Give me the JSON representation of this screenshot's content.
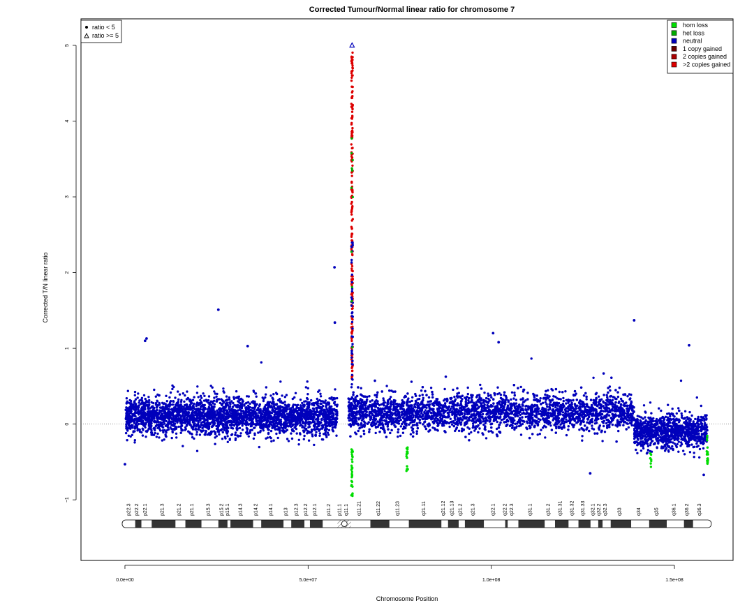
{
  "chart_data": {
    "type": "scatter",
    "title": "Corrected Tumour/Normal linear ratio for chromosome  7",
    "xlabel": "Chromosome Position",
    "ylabel": "Corrected T/N linear ratio",
    "xlim": [
      -12000000,
      166000000
    ],
    "ylim": [
      -1.8,
      5.35
    ],
    "x_ticks": [
      0,
      50000000,
      100000000,
      150000000
    ],
    "x_tick_labels": [
      "0.0e+00",
      "5.0e+07",
      "1.0e+08",
      "1.5e+08"
    ],
    "y_ticks": [
      -1,
      0,
      1,
      2,
      3,
      4,
      5
    ],
    "y_tick_labels": [
      "−1",
      "0",
      "1",
      "2",
      "3",
      "4",
      "5"
    ],
    "reference_line_y": 0,
    "grid": false,
    "chromosome_length": 159300000,
    "centromere": [
      57800000,
      61000000
    ],
    "shape_legend": {
      "placement": "top-left",
      "entries": [
        {
          "symbol": "filled-circle",
          "label": "ratio < 5"
        },
        {
          "symbol": "open-triangle",
          "label": "ratio >= 5"
        }
      ]
    },
    "color_legend": {
      "placement": "top-right",
      "entries": [
        {
          "label": "hom loss",
          "color": "#00dd00"
        },
        {
          "label": "het loss",
          "color": "#00aa00"
        },
        {
          "label": "neutral",
          "color": "#0000bb"
        },
        {
          "label": "1 copy gained",
          "color": "#660000"
        },
        {
          "label": "2 copies gained",
          "color": "#aa0000"
        },
        {
          "label": ">2 copies gained",
          "color": "#dd0000"
        }
      ]
    },
    "segments": [
      {
        "start": 200000,
        "end": 58000000,
        "median": 0.1,
        "spread": 0.22,
        "category": "neutral"
      },
      {
        "start": 61000000,
        "end": 139000000,
        "median": 0.15,
        "spread": 0.22,
        "category": "neutral"
      },
      {
        "start": 139000000,
        "end": 159000000,
        "median": -0.1,
        "spread": 0.2,
        "category": "neutral"
      }
    ],
    "highlight_points": [
      {
        "x": 62000000,
        "y": 5.0,
        "category": "neutral",
        "shape": "open-triangle"
      },
      {
        "x": 57200000,
        "y": 2.07,
        "category": "neutral"
      },
      {
        "x": 57300000,
        "y": 1.34,
        "category": "neutral"
      },
      {
        "x": 25500000,
        "y": 1.51,
        "category": "neutral"
      },
      {
        "x": 139000000,
        "y": 1.37,
        "category": "neutral"
      },
      {
        "x": 100500000,
        "y": 1.2,
        "category": "neutral"
      },
      {
        "x": 5900000,
        "y": 1.13,
        "category": "neutral"
      },
      {
        "x": 5500000,
        "y": 1.1,
        "category": "neutral"
      },
      {
        "x": 33500000,
        "y": 1.03,
        "category": "neutral"
      },
      {
        "x": 102000000,
        "y": 1.08,
        "category": "neutral"
      },
      {
        "x": 154000000,
        "y": 1.04,
        "category": "neutral"
      },
      {
        "x": 127000000,
        "y": -0.65,
        "category": "neutral"
      },
      {
        "x": 158000000,
        "y": -0.67,
        "category": "neutral"
      },
      {
        "x": 0,
        "y": -0.53,
        "category": "neutral"
      }
    ],
    "point_clusters": [
      {
        "x": 62000000,
        "y_min": 0.6,
        "y_max": 4.95,
        "count": 180,
        "category": ">2 copies gained"
      },
      {
        "x": 62000000,
        "y_min": 0.5,
        "y_max": 2.45,
        "count": 40,
        "category": "neutral"
      },
      {
        "x": 62000000,
        "y_min": 1.0,
        "y_max": 3.85,
        "count": 12,
        "category": "het loss"
      },
      {
        "x": 62000000,
        "y_min": -0.95,
        "y_max": -0.3,
        "count": 28,
        "category": "hom loss"
      },
      {
        "x": 77000000,
        "y_min": -0.62,
        "y_max": -0.3,
        "count": 16,
        "category": "hom loss"
      },
      {
        "x": 143500000,
        "y_min": -0.6,
        "y_max": -0.35,
        "count": 8,
        "category": "hom loss"
      },
      {
        "x": 159000000,
        "y_min": -0.55,
        "y_max": -0.15,
        "count": 20,
        "category": "hom loss"
      }
    ],
    "ideogram": {
      "bands": [
        {
          "name": "p22.3",
          "start": 0,
          "end": 2800000,
          "stain": "gneg"
        },
        {
          "name": "p22.2",
          "start": 2800000,
          "end": 4500000,
          "stain": "gpos25"
        },
        {
          "name": "p22.1",
          "start": 4500000,
          "end": 7300000,
          "stain": "gneg"
        },
        {
          "name": "p21.3",
          "start": 7300000,
          "end": 13800000,
          "stain": "gpos100"
        },
        {
          "name": "p21.2",
          "start": 13800000,
          "end": 16500000,
          "stain": "gneg"
        },
        {
          "name": "p21.1",
          "start": 16500000,
          "end": 20900000,
          "stain": "gpos100"
        },
        {
          "name": "p15.3",
          "start": 20900000,
          "end": 25500000,
          "stain": "gneg"
        },
        {
          "name": "p15.2",
          "start": 25500000,
          "end": 28000000,
          "stain": "gpos50"
        },
        {
          "name": "p15.1",
          "start": 28000000,
          "end": 28800000,
          "stain": "gneg"
        },
        {
          "name": "p14.3",
          "start": 28800000,
          "end": 35000000,
          "stain": "gpos75"
        },
        {
          "name": "p14.2",
          "start": 35000000,
          "end": 37200000,
          "stain": "gneg"
        },
        {
          "name": "p14.1",
          "start": 37200000,
          "end": 43300000,
          "stain": "gpos75"
        },
        {
          "name": "p13",
          "start": 43300000,
          "end": 45400000,
          "stain": "gneg"
        },
        {
          "name": "p12.3",
          "start": 45400000,
          "end": 49000000,
          "stain": "gpos75"
        },
        {
          "name": "p12.2",
          "start": 49000000,
          "end": 50500000,
          "stain": "gneg"
        },
        {
          "name": "p12.1",
          "start": 50500000,
          "end": 54000000,
          "stain": "gpos75"
        },
        {
          "name": "p11.2",
          "start": 54000000,
          "end": 58000000,
          "stain": "gneg"
        },
        {
          "name": "p11.1",
          "start": 58000000,
          "end": 59900000,
          "stain": "acen"
        },
        {
          "name": "q11.1",
          "start": 59900000,
          "end": 61700000,
          "stain": "acen"
        },
        {
          "name": "q11.21",
          "start": 61700000,
          "end": 67000000,
          "stain": "gneg"
        },
        {
          "name": "q11.22",
          "start": 67000000,
          "end": 72200000,
          "stain": "gpos50"
        },
        {
          "name": "q11.23",
          "start": 72200000,
          "end": 77500000,
          "stain": "gneg"
        },
        {
          "name": "q21.11",
          "start": 77500000,
          "end": 86400000,
          "stain": "gpos100"
        },
        {
          "name": "q21.12",
          "start": 86400000,
          "end": 88200000,
          "stain": "gneg"
        },
        {
          "name": "q21.13",
          "start": 88200000,
          "end": 91100000,
          "stain": "gpos75"
        },
        {
          "name": "q21.2",
          "start": 91100000,
          "end": 92800000,
          "stain": "gneg"
        },
        {
          "name": "q21.3",
          "start": 92800000,
          "end": 98000000,
          "stain": "gpos75"
        },
        {
          "name": "q22.1",
          "start": 98000000,
          "end": 103800000,
          "stain": "gneg"
        },
        {
          "name": "q22.2",
          "start": 103800000,
          "end": 104500000,
          "stain": "gpos50"
        },
        {
          "name": "q22.3",
          "start": 104500000,
          "end": 107400000,
          "stain": "gneg"
        },
        {
          "name": "q31.1",
          "start": 107400000,
          "end": 114600000,
          "stain": "gpos75"
        },
        {
          "name": "q31.2",
          "start": 114600000,
          "end": 117400000,
          "stain": "gneg"
        },
        {
          "name": "q31.31",
          "start": 117400000,
          "end": 121100000,
          "stain": "gpos75"
        },
        {
          "name": "q31.32",
          "start": 121100000,
          "end": 123800000,
          "stain": "gneg"
        },
        {
          "name": "q31.33",
          "start": 123800000,
          "end": 127100000,
          "stain": "gpos75"
        },
        {
          "name": "q32.1",
          "start": 127100000,
          "end": 129200000,
          "stain": "gneg"
        },
        {
          "name": "q32.2",
          "start": 129200000,
          "end": 130400000,
          "stain": "gpos25"
        },
        {
          "name": "q32.3",
          "start": 130400000,
          "end": 132600000,
          "stain": "gneg"
        },
        {
          "name": "q33",
          "start": 132600000,
          "end": 138200000,
          "stain": "gpos50"
        },
        {
          "name": "q34",
          "start": 138200000,
          "end": 143100000,
          "stain": "gneg"
        },
        {
          "name": "q35",
          "start": 143100000,
          "end": 147900000,
          "stain": "gpos75"
        },
        {
          "name": "q36.1",
          "start": 147900000,
          "end": 152600000,
          "stain": "gneg"
        },
        {
          "name": "q36.2",
          "start": 152600000,
          "end": 155100000,
          "stain": "gpos50"
        },
        {
          "name": "q36.3",
          "start": 155100000,
          "end": 159300000,
          "stain": "gneg"
        }
      ]
    }
  }
}
